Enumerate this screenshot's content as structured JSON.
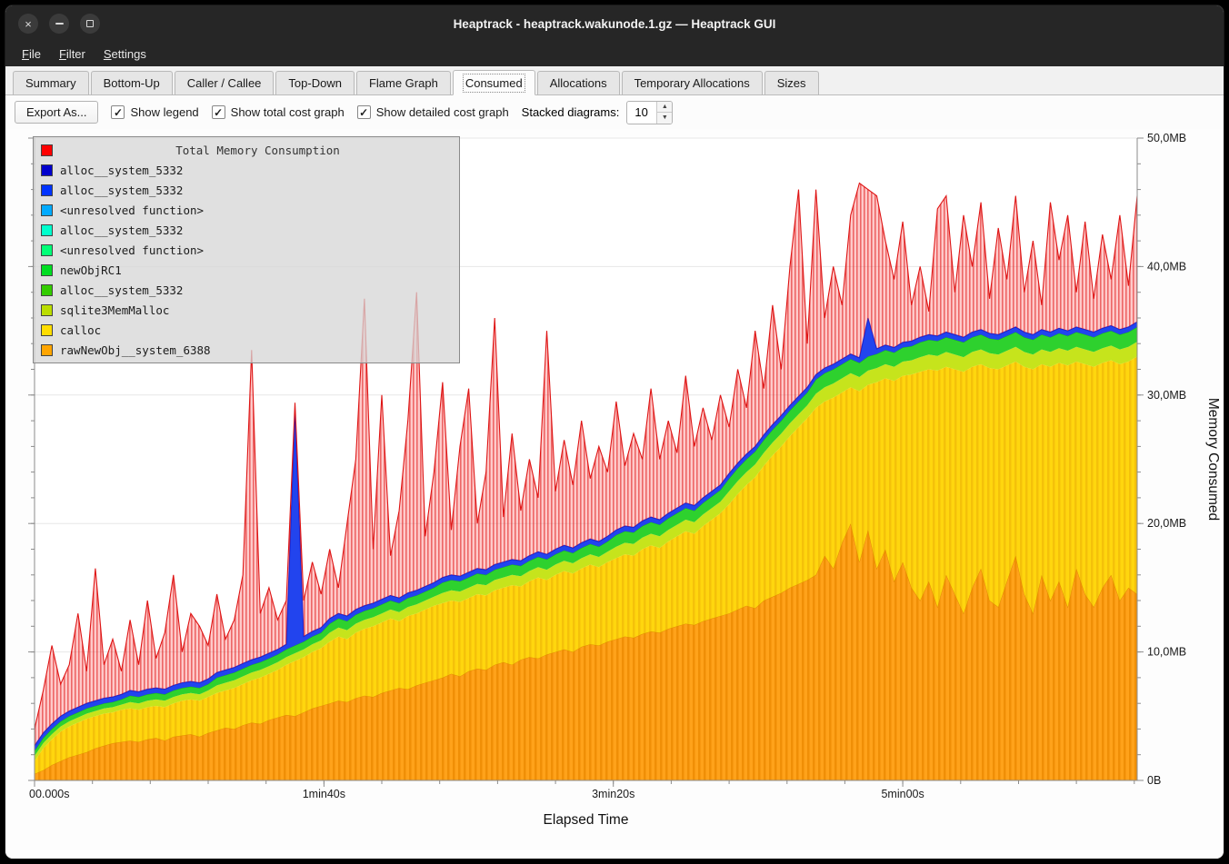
{
  "window": {
    "title": "Heaptrack - heaptrack.wakunode.1.gz — Heaptrack GUI",
    "close_glyph": "×"
  },
  "menu": {
    "items": [
      {
        "label": "File"
      },
      {
        "label": "Filter"
      },
      {
        "label": "Settings"
      }
    ]
  },
  "tabs": {
    "active": "Consumed",
    "items": [
      "Summary",
      "Bottom-Up",
      "Caller / Callee",
      "Top-Down",
      "Flame Graph",
      "Consumed",
      "Allocations",
      "Temporary Allocations",
      "Sizes"
    ]
  },
  "toolbar": {
    "export_button": "Export As...",
    "check_glyph": "✓",
    "checkboxes": [
      {
        "label": "Show legend",
        "checked": true
      },
      {
        "label": "Show total cost graph",
        "checked": true
      },
      {
        "label": "Show detailed cost graph",
        "checked": true
      }
    ],
    "stacked_label": "Stacked diagrams:",
    "stacked_value": "10",
    "spin_up_glyph": "▲",
    "spin_down_glyph": "▼"
  },
  "chart_data": {
    "type": "area",
    "title": "Total Memory Consumption",
    "xlabel": "Elapsed Time",
    "ylabel": "Memory Consumed",
    "xlim": [
      0,
      381
    ],
    "ylim": [
      0,
      50
    ],
    "x_unit": "seconds",
    "y_unit": "MB",
    "grid": true,
    "legend_position": "top-left",
    "x_ticks": [
      {
        "t": 0,
        "label": "00.000s"
      },
      {
        "t": 100,
        "label": "1min40s"
      },
      {
        "t": 200,
        "label": "3min20s"
      },
      {
        "t": 300,
        "label": "5min00s"
      }
    ],
    "y_ticks": [
      {
        "v": 0,
        "label": "0B"
      },
      {
        "v": 10,
        "label": "10,0MB"
      },
      {
        "v": 20,
        "label": "20,0MB"
      },
      {
        "v": 30,
        "label": "30,0MB"
      },
      {
        "v": 40,
        "label": "40,0MB"
      },
      {
        "v": 50,
        "label": "50,0MB"
      }
    ],
    "x_step_seconds": 3,
    "series_tops_mb": {
      "rawNewObj__system_6388": [
        0.5,
        0.8,
        1.2,
        1.5,
        1.8,
        2.0,
        2.2,
        2.5,
        2.7,
        2.9,
        3.0,
        3.1,
        3.0,
        3.2,
        3.3,
        3.1,
        3.4,
        3.5,
        3.6,
        3.4,
        3.7,
        3.9,
        4.1,
        4.0,
        4.3,
        4.5,
        4.4,
        4.7,
        4.9,
        5.1,
        5.0,
        5.3,
        5.6,
        5.8,
        6.0,
        6.2,
        6.1,
        6.4,
        6.6,
        6.5,
        6.8,
        7.0,
        7.2,
        7.1,
        7.4,
        7.6,
        7.8,
        8.0,
        8.3,
        8.1,
        8.5,
        8.7,
        8.6,
        9.0,
        9.2,
        9.0,
        9.4,
        9.6,
        9.5,
        9.8,
        10.0,
        10.2,
        10.0,
        10.4,
        10.6,
        10.5,
        10.8,
        11.0,
        11.2,
        11.1,
        11.4,
        11.6,
        11.5,
        11.8,
        12.0,
        12.2,
        12.1,
        12.4,
        12.6,
        12.8,
        13.0,
        13.3,
        13.6,
        13.4,
        14.0,
        14.3,
        14.6,
        15.0,
        15.3,
        15.6,
        16.0,
        17.5,
        16.5,
        18.5,
        20.0,
        17.0,
        19.5,
        16.5,
        18.0,
        15.5,
        17.0,
        15.0,
        14.0,
        15.5,
        13.5,
        16.0,
        14.5,
        13.0,
        15.0,
        16.5,
        14.0,
        13.5,
        15.5,
        17.5,
        14.5,
        13.0,
        16.0,
        14.0,
        15.5,
        13.5,
        16.5,
        14.5,
        13.5,
        15.0,
        16.0,
        14.0,
        15.0,
        14.5
      ],
      "calloc": [
        1.5,
        2.5,
        3.2,
        3.8,
        4.2,
        4.5,
        4.8,
        5.0,
        5.2,
        5.3,
        5.5,
        5.6,
        5.5,
        5.7,
        5.8,
        5.7,
        6.0,
        6.2,
        6.3,
        6.2,
        6.5,
        6.8,
        7.0,
        7.2,
        7.5,
        7.8,
        8.0,
        8.3,
        8.6,
        9.0,
        9.3,
        9.6,
        10.0,
        10.3,
        10.8,
        11.2,
        11.0,
        11.5,
        11.8,
        12.0,
        12.3,
        12.6,
        12.4,
        12.8,
        13.0,
        13.3,
        13.6,
        13.8,
        14.0,
        13.9,
        14.2,
        14.5,
        14.4,
        14.8,
        15.0,
        15.2,
        15.1,
        15.5,
        15.8,
        15.6,
        16.0,
        16.3,
        16.1,
        16.5,
        16.8,
        16.6,
        17.0,
        17.3,
        17.6,
        17.5,
        18.0,
        18.3,
        18.1,
        18.6,
        19.0,
        19.4,
        19.2,
        19.8,
        20.3,
        20.8,
        21.5,
        22.3,
        23.0,
        23.6,
        24.5,
        25.3,
        26.0,
        26.8,
        27.5,
        28.2,
        29.0,
        29.5,
        29.8,
        30.2,
        30.6,
        30.3,
        30.8,
        31.0,
        31.3,
        31.1,
        31.5,
        31.6,
        31.8,
        32.0,
        31.9,
        32.2,
        32.0,
        31.8,
        32.2,
        32.4,
        32.1,
        32.0,
        32.3,
        32.6,
        32.2,
        32.0,
        32.4,
        32.2,
        32.5,
        32.3,
        32.6,
        32.4,
        32.2,
        32.5,
        32.7,
        32.4,
        32.6,
        33.0
      ],
      "green_stack": [
        2.3,
        3.3,
        4.0,
        4.6,
        5.0,
        5.3,
        5.6,
        5.8,
        6.0,
        6.1,
        6.3,
        6.6,
        6.5,
        6.7,
        6.8,
        6.7,
        7.0,
        7.2,
        7.3,
        7.2,
        7.5,
        8.0,
        8.2,
        8.4,
        8.7,
        9.0,
        9.2,
        9.5,
        9.8,
        10.2,
        10.5,
        10.8,
        11.2,
        11.5,
        12.2,
        12.6,
        12.4,
        12.9,
        13.2,
        13.4,
        13.7,
        14.0,
        13.8,
        14.2,
        14.4,
        14.7,
        15.0,
        15.4,
        15.6,
        15.5,
        15.8,
        16.1,
        16.0,
        16.4,
        16.6,
        16.8,
        16.7,
        17.1,
        17.4,
        17.2,
        17.6,
        17.9,
        17.7,
        18.1,
        18.4,
        18.2,
        18.6,
        19.1,
        19.4,
        19.3,
        19.8,
        20.1,
        19.9,
        20.4,
        20.8,
        21.2,
        21.0,
        21.6,
        22.1,
        22.6,
        23.5,
        24.3,
        25.0,
        25.6,
        26.5,
        27.3,
        28.0,
        28.8,
        29.5,
        30.2,
        31.2,
        31.7,
        32.0,
        32.4,
        32.8,
        32.5,
        33.0,
        33.2,
        33.5,
        33.3,
        33.7,
        33.8,
        34.1,
        34.3,
        34.2,
        34.5,
        34.3,
        34.1,
        34.5,
        34.7,
        34.4,
        34.3,
        34.6,
        34.9,
        34.5,
        34.3,
        34.7,
        34.5,
        34.8,
        34.6,
        34.9,
        34.7,
        34.5,
        34.8,
        35.0,
        34.7,
        34.9,
        35.3
      ],
      "blue_stack": [
        2.7,
        3.7,
        4.4,
        5.0,
        5.4,
        5.7,
        6.0,
        6.2,
        6.4,
        6.5,
        6.7,
        7.0,
        6.9,
        7.1,
        7.2,
        7.1,
        7.4,
        7.6,
        7.7,
        7.6,
        7.9,
        8.4,
        8.6,
        8.8,
        9.1,
        9.4,
        9.6,
        9.9,
        10.2,
        10.6,
        28.8,
        11.2,
        11.6,
        11.9,
        12.6,
        13.0,
        12.8,
        13.3,
        13.6,
        13.8,
        14.1,
        14.4,
        14.2,
        14.6,
        14.8,
        15.1,
        15.4,
        15.8,
        16.0,
        15.9,
        16.2,
        16.5,
        16.4,
        16.8,
        17.0,
        17.2,
        17.1,
        17.5,
        17.8,
        17.6,
        18.0,
        18.3,
        18.1,
        18.5,
        18.8,
        18.6,
        19.0,
        19.5,
        19.8,
        19.7,
        20.2,
        20.5,
        20.3,
        20.8,
        21.2,
        21.6,
        21.4,
        22.0,
        22.5,
        23.0,
        23.9,
        24.7,
        25.4,
        26.0,
        26.9,
        27.7,
        28.4,
        29.2,
        29.9,
        30.6,
        31.6,
        32.1,
        32.4,
        32.8,
        33.2,
        32.9,
        36.0,
        33.6,
        33.9,
        33.7,
        34.1,
        34.2,
        34.5,
        34.7,
        34.6,
        34.9,
        34.7,
        34.5,
        34.9,
        35.1,
        34.8,
        34.7,
        35.0,
        35.3,
        34.9,
        34.7,
        35.1,
        34.9,
        35.2,
        35.0,
        35.3,
        35.1,
        34.9,
        35.2,
        35.4,
        35.1,
        35.3,
        35.7
      ],
      "total": [
        4.0,
        7.0,
        10.5,
        7.5,
        9.0,
        13.0,
        8.5,
        16.5,
        9.0,
        11.0,
        8.5,
        12.5,
        9.0,
        14.0,
        9.5,
        11.5,
        16.0,
        10.0,
        13.0,
        12.0,
        10.5,
        14.5,
        11.0,
        12.5,
        16.0,
        33.5,
        13.0,
        15.0,
        12.5,
        14.0,
        29.4,
        14.0,
        17.0,
        14.5,
        18.0,
        15.0,
        20.0,
        25.0,
        37.5,
        18.0,
        30.0,
        17.5,
        21.0,
        28.0,
        38.0,
        19.0,
        24.0,
        31.0,
        19.5,
        26.0,
        30.5,
        20.0,
        24.0,
        36.0,
        20.5,
        27.0,
        21.0,
        25.0,
        22.0,
        35.0,
        22.5,
        26.5,
        23.0,
        28.0,
        23.5,
        26.0,
        24.0,
        29.5,
        24.5,
        27.0,
        25.0,
        30.5,
        25.0,
        28.0,
        25.5,
        31.5,
        26.0,
        29.0,
        26.5,
        30.0,
        27.5,
        32.0,
        29.0,
        35.0,
        30.5,
        37.0,
        32.0,
        40.0,
        46.0,
        34.0,
        46.0,
        36.0,
        40.0,
        37.0,
        44.0,
        46.5,
        46.0,
        45.5,
        42.0,
        39.0,
        43.5,
        37.0,
        40.0,
        36.5,
        44.5,
        45.5,
        38.0,
        44.0,
        40.0,
        45.0,
        37.5,
        43.0,
        39.0,
        45.5,
        38.0,
        42.0,
        37.0,
        45.0,
        40.5,
        44.0,
        38.0,
        43.5,
        37.5,
        42.5,
        39.0,
        44.0,
        38.5,
        45.5
      ]
    },
    "colors": {
      "total_fill": "#ff5050",
      "total_line": "#de1414",
      "blue_band": "#2244ee",
      "blue_line": "#0b1fd6",
      "green_band": "#2ed12e",
      "green_line": "#13b413",
      "lightgreen_band": "#c6e41c",
      "yellow_base": "#ffd60e",
      "yellow_alt": "#f4c10a",
      "orange_base": "#ffa21a",
      "orange_alt": "#f08f06",
      "orange_line": "#e08a00"
    },
    "legend": [
      {
        "label": "Total Memory Consumption",
        "color": "#ff0000",
        "is_title": true
      },
      {
        "label": "alloc__system_5332",
        "color": "#0000cc",
        "is_title": false
      },
      {
        "label": "alloc__system_5332",
        "color": "#0033ff",
        "is_title": false
      },
      {
        "label": "<unresolved function>",
        "color": "#00aaff",
        "is_title": false
      },
      {
        "label": "alloc__system_5332",
        "color": "#00ffcc",
        "is_title": false
      },
      {
        "label": "<unresolved function>",
        "color": "#00ff77",
        "is_title": false
      },
      {
        "label": "newObjRC1",
        "color": "#00dd22",
        "is_title": false
      },
      {
        "label": "alloc__system_5332",
        "color": "#33cc00",
        "is_title": false
      },
      {
        "label": "sqlite3MemMalloc",
        "color": "#bbdd00",
        "is_title": false
      },
      {
        "label": "calloc",
        "color": "#ffdd00",
        "is_title": false
      },
      {
        "label": "rawNewObj__system_6388",
        "color": "#ffa500",
        "is_title": false
      }
    ]
  }
}
